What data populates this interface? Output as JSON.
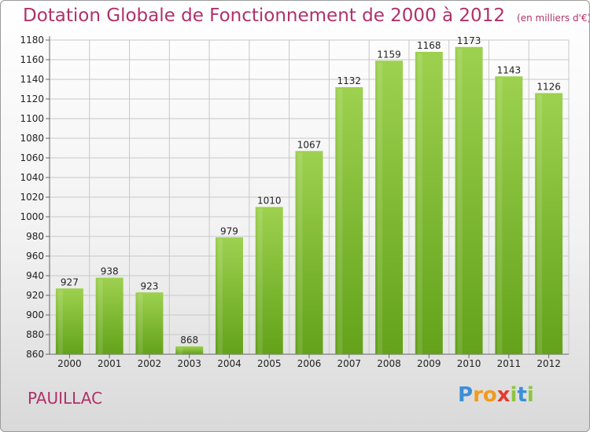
{
  "title": "Dotation Globale de Fonctionnement de 2000 à 2012",
  "unit_label": "(en milliers d'€)",
  "commune": "PAUILLAC",
  "logo": {
    "letters": [
      "P",
      "r",
      "o",
      "x",
      "i",
      "t",
      "i"
    ],
    "colors": [
      "#3b8fd6",
      "#f29a1c",
      "#f29a1c",
      "#e23b2e",
      "#8cc63f",
      "#3b8fd6",
      "#8cc63f"
    ]
  },
  "colors": {
    "bar_light": "#9dd14f",
    "bar_dark": "#63a21a",
    "grid": "#c8c8c8",
    "axis_text": "#222222"
  },
  "chart_data": {
    "type": "bar",
    "categories": [
      "2000",
      "2001",
      "2002",
      "2003",
      "2004",
      "2005",
      "2006",
      "2007",
      "2008",
      "2009",
      "2010",
      "2011",
      "2012"
    ],
    "values": [
      927,
      938,
      923,
      868,
      979,
      1010,
      1067,
      1132,
      1159,
      1168,
      1173,
      1143,
      1126
    ],
    "data_labels": [
      "927",
      "938",
      "923",
      "868",
      "979",
      "1010",
      "1067",
      "1132",
      "1159",
      "1168",
      "1173",
      "1143",
      "1126"
    ],
    "ylim": [
      860,
      1180
    ],
    "yticks": [
      860,
      880,
      900,
      920,
      940,
      960,
      980,
      1000,
      1020,
      1040,
      1060,
      1080,
      1100,
      1120,
      1140,
      1160,
      1180
    ],
    "grid": true
  }
}
